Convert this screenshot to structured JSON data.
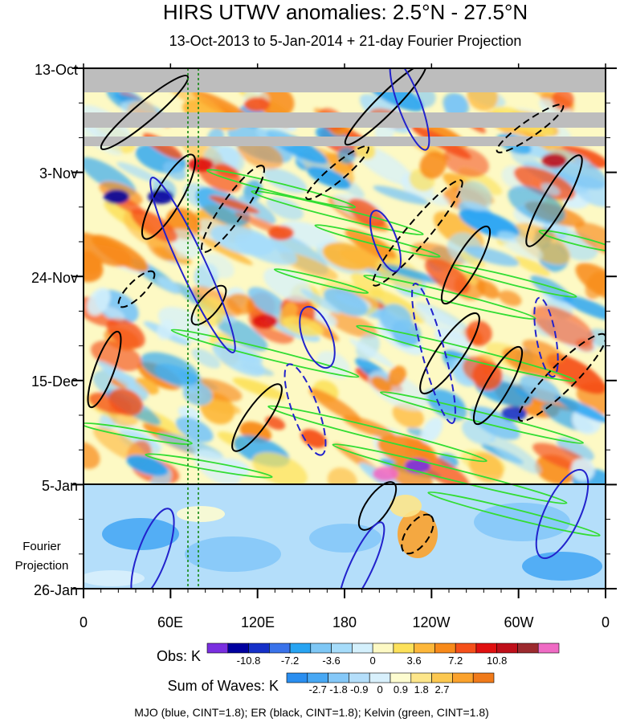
{
  "chart_data": {
    "type": "heatmap",
    "title": "HIRS UTWV anomalies: 2.5°N - 27.5°N",
    "subtitle": "13-Oct-2013 to 5-Jan-2014 + 21-day Fourier Projection",
    "y_ticks": [
      "13-Oct",
      "3-Nov",
      "24-Nov",
      "15-Dec",
      "5-Jan",
      "26-Jan"
    ],
    "projection_label_line1": "Fourier",
    "projection_label_line2": "Projection",
    "x_ticks": [
      "0",
      "60E",
      "120E",
      "180",
      "120W",
      "60W",
      "0"
    ],
    "obs_colorbar": {
      "label": "Obs: K",
      "levels": [
        "-10.8",
        "-7.2",
        "-3.6",
        "0",
        "3.6",
        "7.2",
        "10.8"
      ],
      "colors": [
        "#7a2fe0",
        "#00009f",
        "#1530c8",
        "#3a73ea",
        "#28a4f2",
        "#7ec7f5",
        "#a6dcfa",
        "#d4f0fc",
        "#fdf9c4",
        "#fce15a",
        "#fdb73a",
        "#f88a1a",
        "#f5501a",
        "#e01010",
        "#bf0f1a",
        "#9c2a2e",
        "#ef6bc4"
      ]
    },
    "waves_colorbar": {
      "label": "Sum of Waves: K",
      "levels": [
        "-2.7",
        "-1.8",
        "-0.9",
        "0",
        "0.9",
        "1.8",
        "2.7"
      ],
      "colors": [
        "#2a8ef0",
        "#48a8f4",
        "#85c8f8",
        "#b4defa",
        "#d8f0fc",
        "#fdfcd0",
        "#fde68a",
        "#fcc850",
        "#fba22c",
        "#f07a1a"
      ]
    },
    "caption": "MJO (blue, CINT=1.8); ER (black, CINT=1.8); Kelvin (green, CINT=1.8)",
    "contour_colors": {
      "mjo": "#2222cc",
      "er": "#000000",
      "kelvin": "#33dd33"
    },
    "observation_end": "5-Jan",
    "missing_data_color": "#bdbdbd"
  }
}
